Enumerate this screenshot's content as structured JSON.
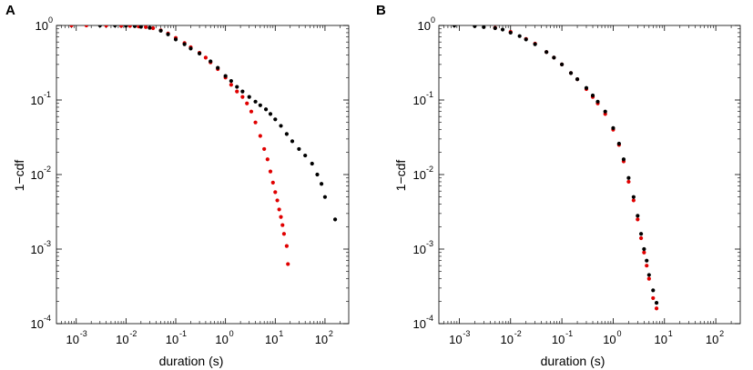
{
  "chart_data": [
    {
      "panel": "A",
      "type": "scatter",
      "xlabel": "duration (s)",
      "ylabel": "1−cdf",
      "xscale": "log",
      "yscale": "log",
      "xlim": [
        0.0004,
        300
      ],
      "ylim": [
        0.0001,
        1
      ],
      "xticks": [
        {
          "base": "10",
          "exp": "-3"
        },
        {
          "base": "10",
          "exp": "-2"
        },
        {
          "base": "10",
          "exp": "-1"
        },
        {
          "base": "10",
          "exp": "0"
        },
        {
          "base": "10",
          "exp": "1"
        },
        {
          "base": "10",
          "exp": "2"
        }
      ],
      "yticks": [
        {
          "base": "10",
          "exp": "-4"
        },
        {
          "base": "10",
          "exp": "-3"
        },
        {
          "base": "10",
          "exp": "-2"
        },
        {
          "base": "10",
          "exp": "-1"
        },
        {
          "base": "10",
          "exp": "0"
        }
      ],
      "series": [
        {
          "color": "#e00000",
          "points": [
            [
              0.0008,
              1.0
            ],
            [
              0.0016,
              1.0
            ],
            [
              0.004,
              0.995
            ],
            [
              0.008,
              0.99
            ],
            [
              0.012,
              0.985
            ],
            [
              0.018,
              0.97
            ],
            [
              0.025,
              0.95
            ],
            [
              0.035,
              0.92
            ],
            [
              0.05,
              0.86
            ],
            [
              0.07,
              0.78
            ],
            [
              0.1,
              0.68
            ],
            [
              0.15,
              0.58
            ],
            [
              0.2,
              0.51
            ],
            [
              0.3,
              0.43
            ],
            [
              0.4,
              0.37
            ],
            [
              0.5,
              0.32
            ],
            [
              0.7,
              0.26
            ],
            [
              1.0,
              0.2
            ],
            [
              1.3,
              0.16
            ],
            [
              1.7,
              0.13
            ],
            [
              2.2,
              0.11
            ],
            [
              2.7,
              0.09
            ],
            [
              3.3,
              0.07
            ],
            [
              4.0,
              0.05
            ],
            [
              5.0,
              0.033
            ],
            [
              6.0,
              0.022
            ],
            [
              7.0,
              0.016
            ],
            [
              8.0,
              0.011
            ],
            [
              9.0,
              0.0078
            ],
            [
              10.0,
              0.0058
            ],
            [
              11.0,
              0.0045
            ],
            [
              12.0,
              0.0034
            ],
            [
              13.0,
              0.0027
            ],
            [
              14.0,
              0.0021
            ],
            [
              15.0,
              0.0016
            ],
            [
              17.0,
              0.0011
            ],
            [
              18.0,
              0.00063
            ]
          ]
        },
        {
          "color": "#000000",
          "points": [
            [
              0.003,
              1.0
            ],
            [
              0.006,
              1.0
            ],
            [
              0.01,
              0.99
            ],
            [
              0.015,
              0.98
            ],
            [
              0.02,
              0.96
            ],
            [
              0.03,
              0.93
            ],
            [
              0.05,
              0.85
            ],
            [
              0.07,
              0.76
            ],
            [
              0.1,
              0.65
            ],
            [
              0.15,
              0.56
            ],
            [
              0.2,
              0.49
            ],
            [
              0.3,
              0.42
            ],
            [
              0.5,
              0.33
            ],
            [
              0.7,
              0.27
            ],
            [
              1.0,
              0.21
            ],
            [
              1.3,
              0.18
            ],
            [
              1.7,
              0.15
            ],
            [
              2.2,
              0.13
            ],
            [
              3.0,
              0.11
            ],
            [
              4.0,
              0.095
            ],
            [
              5.0,
              0.085
            ],
            [
              6.5,
              0.075
            ],
            [
              8.0,
              0.065
            ],
            [
              10.0,
              0.055
            ],
            [
              13.0,
              0.045
            ],
            [
              17.0,
              0.035
            ],
            [
              22.0,
              0.028
            ],
            [
              30.0,
              0.022
            ],
            [
              40.0,
              0.018
            ],
            [
              55.0,
              0.014
            ],
            [
              70.0,
              0.01
            ],
            [
              85.0,
              0.0075
            ],
            [
              100.0,
              0.005
            ],
            [
              160.0,
              0.0025
            ]
          ]
        }
      ]
    },
    {
      "panel": "B",
      "type": "scatter",
      "xlabel": "duration (s)",
      "ylabel": "1−cdf",
      "xscale": "log",
      "yscale": "log",
      "xlim": [
        0.0004,
        300
      ],
      "ylim": [
        0.0001,
        1
      ],
      "xticks": [
        {
          "base": "10",
          "exp": "-3"
        },
        {
          "base": "10",
          "exp": "-2"
        },
        {
          "base": "10",
          "exp": "-1"
        },
        {
          "base": "10",
          "exp": "0"
        },
        {
          "base": "10",
          "exp": "1"
        },
        {
          "base": "10",
          "exp": "2"
        }
      ],
      "yticks": [
        {
          "base": "10",
          "exp": "-4"
        },
        {
          "base": "10",
          "exp": "-3"
        },
        {
          "base": "10",
          "exp": "-2"
        },
        {
          "base": "10",
          "exp": "-1"
        },
        {
          "base": "10",
          "exp": "0"
        }
      ],
      "series": [
        {
          "color": "#e00000",
          "points": [
            [
              0.005,
              0.93
            ],
            [
              0.01,
              0.82
            ],
            [
              0.02,
              0.66
            ],
            [
              0.03,
              0.57
            ],
            [
              0.05,
              0.44
            ],
            [
              0.07,
              0.37
            ],
            [
              0.1,
              0.3
            ],
            [
              0.15,
              0.23
            ],
            [
              0.2,
              0.19
            ],
            [
              0.3,
              0.14
            ],
            [
              0.4,
              0.11
            ],
            [
              0.5,
              0.09
            ],
            [
              0.7,
              0.065
            ],
            [
              1.0,
              0.04
            ],
            [
              1.3,
              0.025
            ],
            [
              1.6,
              0.015
            ],
            [
              2.0,
              0.008
            ],
            [
              2.5,
              0.0045
            ],
            [
              3.0,
              0.0025
            ],
            [
              3.5,
              0.0014
            ],
            [
              4.0,
              0.0009
            ],
            [
              4.5,
              0.0006
            ],
            [
              5.0,
              0.0004
            ],
            [
              6.0,
              0.00022
            ],
            [
              7.0,
              0.00016
            ]
          ]
        },
        {
          "color": "#000000",
          "points": [
            [
              0.0008,
              1.0
            ],
            [
              0.002,
              0.98
            ],
            [
              0.003,
              0.95
            ],
            [
              0.005,
              0.92
            ],
            [
              0.007,
              0.88
            ],
            [
              0.01,
              0.8
            ],
            [
              0.015,
              0.72
            ],
            [
              0.02,
              0.65
            ],
            [
              0.03,
              0.56
            ],
            [
              0.05,
              0.44
            ],
            [
              0.07,
              0.37
            ],
            [
              0.1,
              0.3
            ],
            [
              0.15,
              0.23
            ],
            [
              0.2,
              0.19
            ],
            [
              0.3,
              0.145
            ],
            [
              0.4,
              0.115
            ],
            [
              0.5,
              0.095
            ],
            [
              0.7,
              0.07
            ],
            [
              1.0,
              0.042
            ],
            [
              1.3,
              0.026
            ],
            [
              1.6,
              0.016
            ],
            [
              2.0,
              0.009
            ],
            [
              2.5,
              0.005
            ],
            [
              3.0,
              0.0028
            ],
            [
              3.5,
              0.0016
            ],
            [
              4.0,
              0.001
            ],
            [
              4.5,
              0.0007
            ],
            [
              5.0,
              0.00045
            ],
            [
              6.0,
              0.00028
            ],
            [
              7.0,
              0.00019
            ]
          ]
        }
      ]
    }
  ]
}
